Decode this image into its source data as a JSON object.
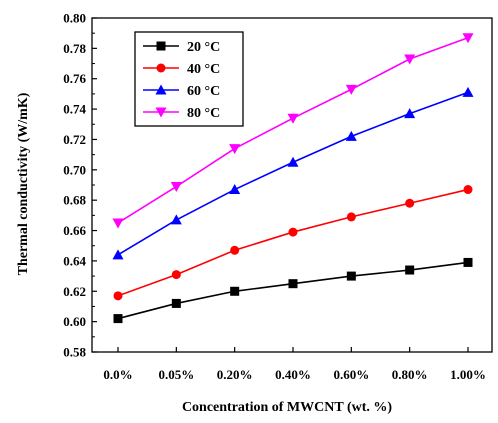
{
  "chart_data": {
    "type": "line",
    "title": "",
    "xlabel": "Concentration of  MWCNT (wt. %)",
    "ylabel": "Thermal conductivity (W/mK)",
    "categories": [
      "0.0%",
      "0.05%",
      "0.20%",
      "0.40%",
      "0.60%",
      "0.80%",
      "1.00%"
    ],
    "ylim": [
      0.58,
      0.8
    ],
    "yticks": [
      "0.58",
      "0.60",
      "0.62",
      "0.64",
      "0.66",
      "0.68",
      "0.70",
      "0.72",
      "0.74",
      "0.76",
      "0.78",
      "0.80"
    ],
    "grid": false,
    "legend_position": "top-left",
    "series": [
      {
        "name": "20 °C",
        "color": "#000000",
        "marker": "square",
        "values": [
          0.602,
          0.612,
          0.62,
          0.625,
          0.63,
          0.634,
          0.639
        ]
      },
      {
        "name": "40 °C",
        "color": "#ff0000",
        "marker": "circle",
        "values": [
          0.617,
          0.631,
          0.647,
          0.659,
          0.669,
          0.678,
          0.687
        ]
      },
      {
        "name": "60 °C",
        "color": "#0000ff",
        "marker": "triangle-up",
        "values": [
          0.644,
          0.667,
          0.687,
          0.705,
          0.722,
          0.737,
          0.751
        ]
      },
      {
        "name": "80 °C",
        "color": "#ff00ff",
        "marker": "triangle-down",
        "values": [
          0.665,
          0.689,
          0.714,
          0.734,
          0.753,
          0.773,
          0.787
        ]
      }
    ]
  }
}
